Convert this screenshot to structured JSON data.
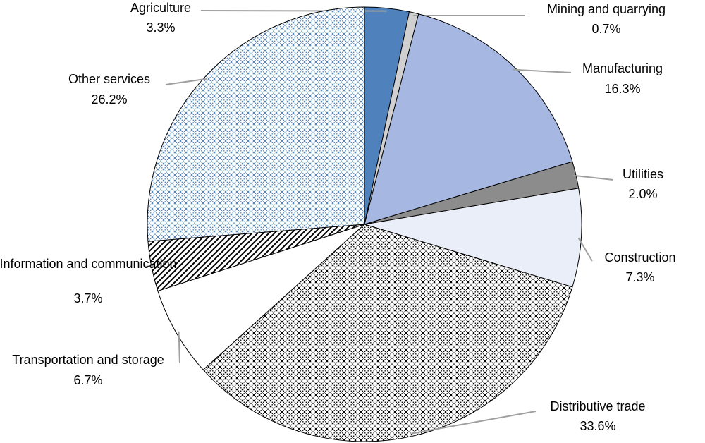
{
  "chart_data": {
    "type": "pie",
    "categories": [
      "Agriculture",
      "Mining and quarrying",
      "Manufacturing",
      "Utilities",
      "Construction",
      "Distributive trade",
      "Transportation and storage",
      "Information and communication",
      "Other services"
    ],
    "values": [
      3.3,
      0.7,
      16.3,
      2.0,
      7.3,
      33.6,
      6.7,
      3.7,
      26.2
    ],
    "value_labels": [
      "3.3%",
      "0.7%",
      "16.3%",
      "2.0%",
      "7.3%",
      "33.6%",
      "6.7%",
      "3.7%",
      "26.2%"
    ],
    "colors": [
      "#4f81bd",
      "#d0d0d0",
      "#a6b8e2",
      "#8c8c8c",
      "#eaeef8",
      "#000000",
      "#ffffff",
      "#000000",
      "#4f81bd"
    ],
    "patterns": [
      "solid",
      "solid",
      "solid",
      "solid",
      "solid",
      "crosshatch",
      "solid",
      "diagonal",
      "crosshatch"
    ]
  }
}
